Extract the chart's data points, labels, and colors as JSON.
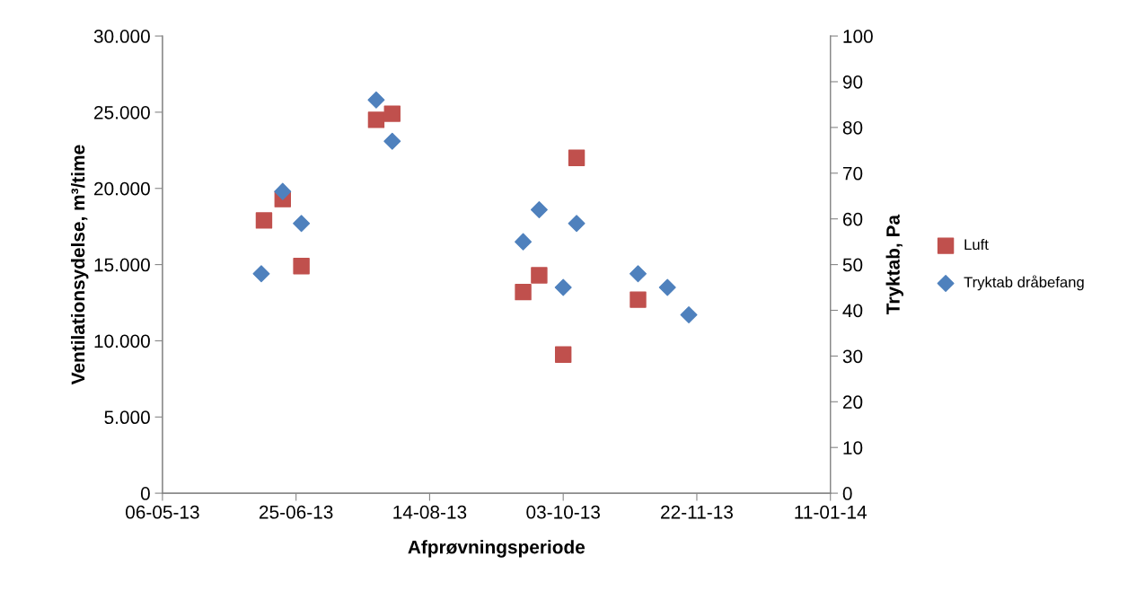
{
  "chart_data": {
    "type": "scatter",
    "xlabel": "Afprøvningsperiode",
    "ylabel": "Ventilationsydelse, m³/time",
    "y2label": "Tryktab, Pa",
    "xlim": [
      "2013-05-06",
      "2014-01-11"
    ],
    "xticks": [
      {
        "value": "2013-05-06",
        "label": "06-05-13"
      },
      {
        "value": "2013-06-25",
        "label": "25-06-13"
      },
      {
        "value": "2013-08-14",
        "label": "14-08-13"
      },
      {
        "value": "2013-10-03",
        "label": "03-10-13"
      },
      {
        "value": "2013-11-22",
        "label": "22-11-13"
      },
      {
        "value": "2014-01-11",
        "label": "11-01-14"
      }
    ],
    "ylim": [
      0,
      30000
    ],
    "yticks": [
      {
        "value": 0,
        "label": "0"
      },
      {
        "value": 5000,
        "label": "5.000"
      },
      {
        "value": 10000,
        "label": "10.000"
      },
      {
        "value": 15000,
        "label": "15.000"
      },
      {
        "value": 20000,
        "label": "20.000"
      },
      {
        "value": 25000,
        "label": "25.000"
      },
      {
        "value": 30000,
        "label": "30.000"
      }
    ],
    "y2lim": [
      0,
      100
    ],
    "y2ticks": [
      0,
      10,
      20,
      30,
      40,
      50,
      60,
      70,
      80,
      90,
      100
    ],
    "grid": false,
    "legend": "right",
    "series": [
      {
        "name": "Luft",
        "color": "#c0504d",
        "marker": "square",
        "x": [
          "2013-06-13",
          "2013-06-20",
          "2013-06-27",
          "2013-07-25",
          "2013-07-31",
          "2013-09-18",
          "2013-09-24",
          "2013-10-03",
          "2013-10-08",
          "2013-10-31"
        ],
        "values": [
          17900,
          19300,
          14900,
          24500,
          24900,
          13200,
          14300,
          9100,
          22000,
          12700
        ]
      },
      {
        "name": "Tryktab dråbefang",
        "color": "#4f81bd",
        "marker": "diamond",
        "axis": "y2",
        "x": [
          "2013-06-12",
          "2013-06-20",
          "2013-06-27",
          "2013-07-25",
          "2013-07-31",
          "2013-09-18",
          "2013-09-24",
          "2013-10-03",
          "2013-10-08",
          "2013-10-31",
          "2013-11-11",
          "2013-11-19"
        ],
        "values": [
          48,
          66,
          59,
          86,
          77,
          55,
          62,
          45,
          59,
          48,
          45,
          39
        ]
      }
    ]
  }
}
